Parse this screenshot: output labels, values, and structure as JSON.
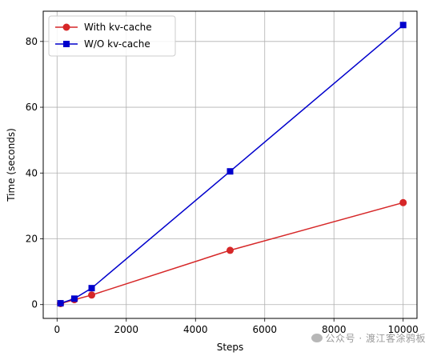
{
  "chart_data": {
    "type": "line",
    "title": "",
    "xlabel": "Steps",
    "ylabel": "Time (seconds)",
    "xlim": [
      -400,
      10400
    ],
    "ylim": [
      -4.2,
      89.2
    ],
    "xticks": [
      0,
      2000,
      4000,
      6000,
      8000,
      10000
    ],
    "yticks": [
      0,
      20,
      40,
      60,
      80
    ],
    "grid": true,
    "legend_position": "top-left",
    "series": [
      {
        "name": "With kv-cache",
        "color": "#d62728",
        "marker": "circle",
        "x": [
          100,
          500,
          1000,
          5000,
          10000
        ],
        "y": [
          0.3,
          1.5,
          2.9,
          16.5,
          31.0
        ]
      },
      {
        "name": "W/O kv-cache",
        "color": "#0000cc",
        "marker": "square",
        "x": [
          100,
          500,
          1000,
          5000,
          10000
        ],
        "y": [
          0.4,
          1.8,
          5.0,
          40.5,
          85.0
        ]
      }
    ]
  },
  "watermark": "公众号 · 渡江客涂鸦板"
}
